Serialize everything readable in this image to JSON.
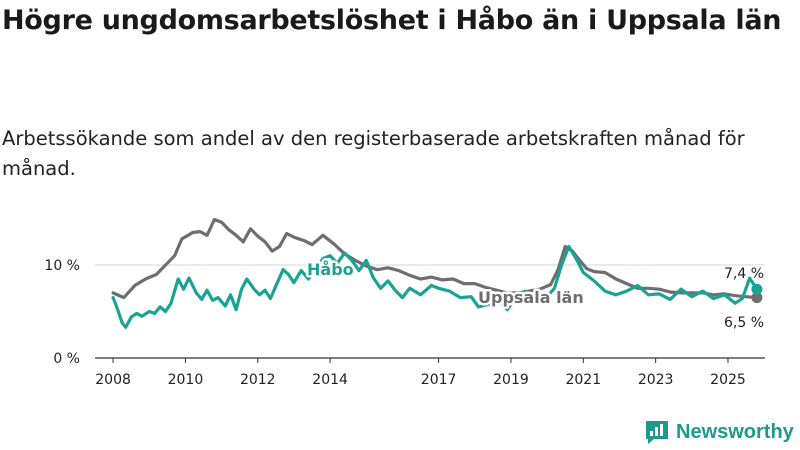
{
  "title": "Högre ungdomsarbetslöshet i Håbo än i Uppsala län",
  "subtitle": "Arbetssökande som andel av den registerbaserade arbetskraften månad för månad.",
  "brand": {
    "name": "Newsworthy",
    "icon": "bar-chart-logo-icon",
    "color": "#1d9a8e"
  },
  "chart_data": {
    "type": "line",
    "title": "Högre ungdomsarbetslöshet i Håbo än i Uppsala län",
    "xlabel": "",
    "ylabel": "",
    "ylim": [
      0,
      17
    ],
    "xlim": [
      2007.5,
      2026.3
    ],
    "y_ticks": [
      {
        "value": 0,
        "label": "0 %"
      },
      {
        "value": 10,
        "label": "10 %"
      }
    ],
    "x_ticks": [
      {
        "value": 2008,
        "label": "2008"
      },
      {
        "value": 2010,
        "label": "2010"
      },
      {
        "value": 2012,
        "label": "2012"
      },
      {
        "value": 2014,
        "label": "2014"
      },
      {
        "value": 2017,
        "label": "2017"
      },
      {
        "value": 2019,
        "label": "2019"
      },
      {
        "value": 2021,
        "label": "2021"
      },
      {
        "value": 2023,
        "label": "2023"
      },
      {
        "value": 2025,
        "label": "2025"
      }
    ],
    "series": [
      {
        "name": "Uppsala län",
        "color": "#6e6e72",
        "end_label": "6,5 %",
        "points": [
          [
            2008.0,
            7.0
          ],
          [
            2008.3,
            6.5
          ],
          [
            2008.6,
            7.8
          ],
          [
            2008.9,
            8.5
          ],
          [
            2009.2,
            9.0
          ],
          [
            2009.5,
            10.2
          ],
          [
            2009.7,
            11.0
          ],
          [
            2009.9,
            12.8
          ],
          [
            2010.2,
            13.5
          ],
          [
            2010.4,
            13.6
          ],
          [
            2010.6,
            13.2
          ],
          [
            2010.8,
            14.9
          ],
          [
            2011.0,
            14.6
          ],
          [
            2011.2,
            13.8
          ],
          [
            2011.4,
            13.2
          ],
          [
            2011.6,
            12.5
          ],
          [
            2011.8,
            13.9
          ],
          [
            2012.0,
            13.1
          ],
          [
            2012.2,
            12.5
          ],
          [
            2012.4,
            11.5
          ],
          [
            2012.6,
            12.0
          ],
          [
            2012.8,
            13.4
          ],
          [
            2013.0,
            13.0
          ],
          [
            2013.3,
            12.6
          ],
          [
            2013.5,
            12.2
          ],
          [
            2013.8,
            13.2
          ],
          [
            2014.1,
            12.3
          ],
          [
            2014.4,
            11.2
          ],
          [
            2014.7,
            10.5
          ],
          [
            2015.0,
            9.9
          ],
          [
            2015.3,
            9.5
          ],
          [
            2015.6,
            9.7
          ],
          [
            2015.9,
            9.4
          ],
          [
            2016.2,
            8.9
          ],
          [
            2016.5,
            8.5
          ],
          [
            2016.8,
            8.7
          ],
          [
            2017.1,
            8.4
          ],
          [
            2017.4,
            8.5
          ],
          [
            2017.7,
            8.0
          ],
          [
            2018.0,
            8.0
          ],
          [
            2018.3,
            7.6
          ],
          [
            2018.6,
            7.3
          ],
          [
            2018.9,
            7.0
          ],
          [
            2019.2,
            7.0
          ],
          [
            2019.5,
            7.2
          ],
          [
            2019.8,
            7.4
          ],
          [
            2020.1,
            7.9
          ],
          [
            2020.3,
            9.5
          ],
          [
            2020.5,
            12.0
          ],
          [
            2020.7,
            11.5
          ],
          [
            2020.9,
            10.5
          ],
          [
            2021.1,
            9.6
          ],
          [
            2021.3,
            9.3
          ],
          [
            2021.6,
            9.2
          ],
          [
            2021.9,
            8.5
          ],
          [
            2022.2,
            8.0
          ],
          [
            2022.5,
            7.5
          ],
          [
            2022.8,
            7.5
          ],
          [
            2023.1,
            7.4
          ],
          [
            2023.4,
            7.1
          ],
          [
            2023.7,
            7.0
          ],
          [
            2024.0,
            7.0
          ],
          [
            2024.3,
            7.0
          ],
          [
            2024.6,
            6.8
          ],
          [
            2024.9,
            6.9
          ],
          [
            2025.2,
            6.7
          ],
          [
            2025.5,
            6.6
          ],
          [
            2025.8,
            6.5
          ]
        ]
      },
      {
        "name": "Håbo",
        "color": "#1aa394",
        "end_label": "7,4 %",
        "points": [
          [
            2008.0,
            6.5
          ],
          [
            2008.1,
            5.5
          ],
          [
            2008.25,
            3.8
          ],
          [
            2008.35,
            3.3
          ],
          [
            2008.5,
            4.4
          ],
          [
            2008.65,
            4.8
          ],
          [
            2008.8,
            4.5
          ],
          [
            2009.0,
            5.0
          ],
          [
            2009.15,
            4.8
          ],
          [
            2009.3,
            5.5
          ],
          [
            2009.45,
            5.0
          ],
          [
            2009.6,
            5.9
          ],
          [
            2009.8,
            8.5
          ],
          [
            2009.95,
            7.4
          ],
          [
            2010.1,
            8.6
          ],
          [
            2010.3,
            7.0
          ],
          [
            2010.45,
            6.3
          ],
          [
            2010.6,
            7.3
          ],
          [
            2010.75,
            6.2
          ],
          [
            2010.9,
            6.5
          ],
          [
            2011.1,
            5.6
          ],
          [
            2011.25,
            6.8
          ],
          [
            2011.4,
            5.2
          ],
          [
            2011.55,
            7.4
          ],
          [
            2011.7,
            8.5
          ],
          [
            2011.9,
            7.4
          ],
          [
            2012.05,
            6.8
          ],
          [
            2012.2,
            7.3
          ],
          [
            2012.35,
            6.4
          ],
          [
            2012.55,
            8.2
          ],
          [
            2012.7,
            9.5
          ],
          [
            2012.85,
            9.0
          ],
          [
            2013.0,
            8.1
          ],
          [
            2013.2,
            9.4
          ],
          [
            2013.4,
            8.5
          ],
          [
            2013.6,
            9.4
          ],
          [
            2013.8,
            10.7
          ],
          [
            2014.0,
            11.0
          ],
          [
            2014.2,
            10.2
          ],
          [
            2014.4,
            11.3
          ],
          [
            2014.6,
            10.5
          ],
          [
            2014.8,
            9.4
          ],
          [
            2015.0,
            10.5
          ],
          [
            2015.2,
            8.6
          ],
          [
            2015.4,
            7.5
          ],
          [
            2015.6,
            8.3
          ],
          [
            2015.8,
            7.3
          ],
          [
            2016.0,
            6.5
          ],
          [
            2016.2,
            7.5
          ],
          [
            2016.5,
            6.8
          ],
          [
            2016.8,
            7.8
          ],
          [
            2017.0,
            7.5
          ],
          [
            2017.3,
            7.2
          ],
          [
            2017.6,
            6.5
          ],
          [
            2017.9,
            6.6
          ],
          [
            2018.1,
            5.5
          ],
          [
            2018.4,
            5.8
          ],
          [
            2018.7,
            6.0
          ],
          [
            2018.9,
            5.2
          ],
          [
            2019.1,
            6.4
          ],
          [
            2019.4,
            7.2
          ],
          [
            2019.7,
            6.4
          ],
          [
            2020.0,
            6.6
          ],
          [
            2020.2,
            7.5
          ],
          [
            2020.4,
            10.0
          ],
          [
            2020.6,
            12.0
          ],
          [
            2020.8,
            10.7
          ],
          [
            2021.0,
            9.2
          ],
          [
            2021.3,
            8.3
          ],
          [
            2021.6,
            7.2
          ],
          [
            2021.9,
            6.8
          ],
          [
            2022.2,
            7.2
          ],
          [
            2022.5,
            7.8
          ],
          [
            2022.8,
            6.8
          ],
          [
            2023.1,
            6.9
          ],
          [
            2023.4,
            6.3
          ],
          [
            2023.7,
            7.4
          ],
          [
            2024.0,
            6.6
          ],
          [
            2024.3,
            7.2
          ],
          [
            2024.6,
            6.4
          ],
          [
            2024.9,
            6.8
          ],
          [
            2025.2,
            5.9
          ],
          [
            2025.4,
            6.4
          ],
          [
            2025.6,
            8.6
          ],
          [
            2025.8,
            7.4
          ]
        ]
      }
    ]
  }
}
